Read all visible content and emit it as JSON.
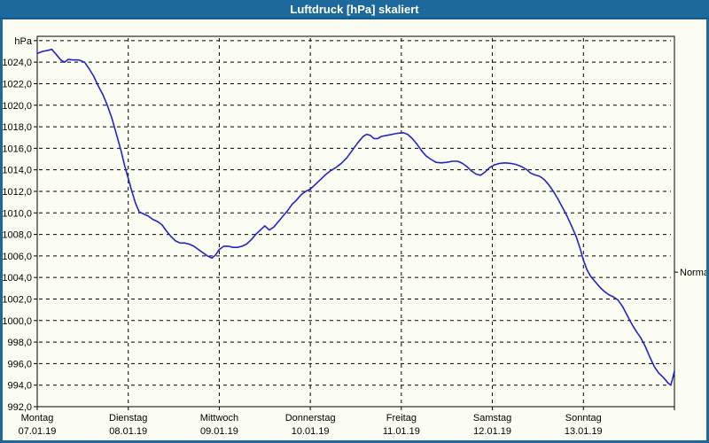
{
  "window": {
    "title": "Luftdruck [hPa] skaliert"
  },
  "colors": {
    "frame": "#1E699B",
    "frame_edge": "#124F7B",
    "panel_bg": "#FBFDF3",
    "grid": "#000000",
    "text": "#000000",
    "line": "#2323C8"
  },
  "chart_data": {
    "type": "line",
    "title": "Luftdruck [hPa] skaliert",
    "unit_label": "hPa",
    "ylim": [
      992,
      1026
    ],
    "ytick_step": 2,
    "ytick_decimal_separator": "comma",
    "grid": "dashed",
    "legend_position": "none",
    "x_axis_days": [
      {
        "weekday": "Montag",
        "date": "07.01.19"
      },
      {
        "weekday": "Dienstag",
        "date": "08.01.19"
      },
      {
        "weekday": "Mittwoch",
        "date": "09.01.19"
      },
      {
        "weekday": "Donnerstag",
        "date": "10.01.19"
      },
      {
        "weekday": "Freitag",
        "date": "11.01.19"
      },
      {
        "weekday": "Samstag",
        "date": "12.01.19"
      },
      {
        "weekday": "Sonntag",
        "date": "13.01.19"
      }
    ],
    "normal_marker": {
      "label": "Normal",
      "value": 1004.5
    },
    "series": [
      {
        "name": "Luftdruck",
        "color": "#2323C8",
        "x_unit": "days_from_monday",
        "y_unit": "hPa",
        "points": [
          [
            0.0,
            1024.8
          ],
          [
            0.06,
            1025.0
          ],
          [
            0.12,
            1025.1
          ],
          [
            0.16,
            1025.2
          ],
          [
            0.21,
            1024.7
          ],
          [
            0.26,
            1024.2
          ],
          [
            0.3,
            1024.0
          ],
          [
            0.34,
            1024.25
          ],
          [
            0.4,
            1024.2
          ],
          [
            0.46,
            1024.2
          ],
          [
            0.52,
            1024.0
          ],
          [
            0.57,
            1023.4
          ],
          [
            0.62,
            1022.7
          ],
          [
            0.67,
            1021.8
          ],
          [
            0.72,
            1021.0
          ],
          [
            0.77,
            1020.0
          ],
          [
            0.82,
            1018.8
          ],
          [
            0.87,
            1017.3
          ],
          [
            0.92,
            1015.8
          ],
          [
            0.96,
            1014.4
          ],
          [
            1.0,
            1013.2
          ],
          [
            1.04,
            1012.0
          ],
          [
            1.08,
            1010.9
          ],
          [
            1.12,
            1010.1
          ],
          [
            1.17,
            1009.9
          ],
          [
            1.22,
            1009.7
          ],
          [
            1.27,
            1009.4
          ],
          [
            1.32,
            1009.2
          ],
          [
            1.37,
            1008.9
          ],
          [
            1.42,
            1008.3
          ],
          [
            1.47,
            1007.8
          ],
          [
            1.52,
            1007.4
          ],
          [
            1.57,
            1007.2
          ],
          [
            1.62,
            1007.2
          ],
          [
            1.67,
            1007.1
          ],
          [
            1.72,
            1006.9
          ],
          [
            1.77,
            1006.6
          ],
          [
            1.82,
            1006.3
          ],
          [
            1.87,
            1006.0
          ],
          [
            1.92,
            1005.8
          ],
          [
            1.96,
            1006.1
          ],
          [
            2.0,
            1006.6
          ],
          [
            2.05,
            1006.9
          ],
          [
            2.1,
            1006.9
          ],
          [
            2.15,
            1006.8
          ],
          [
            2.2,
            1006.8
          ],
          [
            2.25,
            1006.9
          ],
          [
            2.3,
            1007.1
          ],
          [
            2.35,
            1007.5
          ],
          [
            2.4,
            1008.0
          ],
          [
            2.45,
            1008.4
          ],
          [
            2.5,
            1008.8
          ],
          [
            2.55,
            1008.4
          ],
          [
            2.6,
            1008.7
          ],
          [
            2.65,
            1009.2
          ],
          [
            2.7,
            1009.7
          ],
          [
            2.75,
            1010.2
          ],
          [
            2.8,
            1010.8
          ],
          [
            2.85,
            1011.2
          ],
          [
            2.9,
            1011.7
          ],
          [
            2.95,
            1012.0
          ],
          [
            3.0,
            1012.2
          ],
          [
            3.05,
            1012.6
          ],
          [
            3.1,
            1013.0
          ],
          [
            3.16,
            1013.5
          ],
          [
            3.22,
            1013.9
          ],
          [
            3.28,
            1014.2
          ],
          [
            3.34,
            1014.6
          ],
          [
            3.4,
            1015.1
          ],
          [
            3.46,
            1015.8
          ],
          [
            3.52,
            1016.5
          ],
          [
            3.58,
            1017.1
          ],
          [
            3.62,
            1017.3
          ],
          [
            3.66,
            1017.2
          ],
          [
            3.7,
            1016.9
          ],
          [
            3.74,
            1016.9
          ],
          [
            3.78,
            1017.1
          ],
          [
            3.84,
            1017.2
          ],
          [
            3.9,
            1017.3
          ],
          [
            3.96,
            1017.4
          ],
          [
            4.02,
            1017.45
          ],
          [
            4.07,
            1017.3
          ],
          [
            4.12,
            1016.9
          ],
          [
            4.17,
            1016.4
          ],
          [
            4.22,
            1015.8
          ],
          [
            4.27,
            1015.3
          ],
          [
            4.32,
            1015.0
          ],
          [
            4.38,
            1014.7
          ],
          [
            4.44,
            1014.65
          ],
          [
            4.5,
            1014.7
          ],
          [
            4.56,
            1014.8
          ],
          [
            4.62,
            1014.8
          ],
          [
            4.67,
            1014.6
          ],
          [
            4.72,
            1014.3
          ],
          [
            4.77,
            1013.9
          ],
          [
            4.82,
            1013.6
          ],
          [
            4.87,
            1013.5
          ],
          [
            4.92,
            1013.8
          ],
          [
            4.97,
            1014.2
          ],
          [
            5.02,
            1014.45
          ],
          [
            5.08,
            1014.6
          ],
          [
            5.14,
            1014.65
          ],
          [
            5.2,
            1014.6
          ],
          [
            5.26,
            1014.5
          ],
          [
            5.32,
            1014.3
          ],
          [
            5.38,
            1014.0
          ],
          [
            5.42,
            1013.7
          ],
          [
            5.46,
            1013.55
          ],
          [
            5.52,
            1013.4
          ],
          [
            5.57,
            1013.1
          ],
          [
            5.62,
            1012.6
          ],
          [
            5.67,
            1012.0
          ],
          [
            5.72,
            1011.3
          ],
          [
            5.77,
            1010.5
          ],
          [
            5.82,
            1009.7
          ],
          [
            5.87,
            1008.8
          ],
          [
            5.92,
            1007.8
          ],
          [
            5.96,
            1006.8
          ],
          [
            6.0,
            1005.6
          ],
          [
            6.04,
            1004.7
          ],
          [
            6.08,
            1004.1
          ],
          [
            6.13,
            1003.6
          ],
          [
            6.18,
            1003.1
          ],
          [
            6.23,
            1002.7
          ],
          [
            6.28,
            1002.4
          ],
          [
            6.33,
            1002.2
          ],
          [
            6.38,
            1001.9
          ],
          [
            6.43,
            1001.3
          ],
          [
            6.48,
            1000.5
          ],
          [
            6.53,
            999.7
          ],
          [
            6.58,
            999.0
          ],
          [
            6.63,
            998.4
          ],
          [
            6.68,
            997.6
          ],
          [
            6.73,
            996.6
          ],
          [
            6.78,
            995.7
          ],
          [
            6.83,
            995.1
          ],
          [
            6.88,
            994.7
          ],
          [
            6.93,
            994.2
          ],
          [
            6.96,
            994.0
          ],
          [
            6.98,
            994.6
          ],
          [
            7.0,
            995.3
          ]
        ]
      }
    ]
  }
}
